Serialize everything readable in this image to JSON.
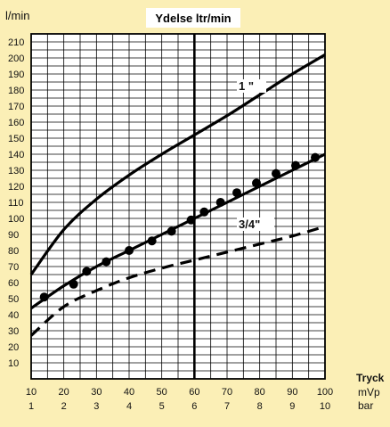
{
  "chart_data": {
    "type": "line",
    "title": "Ydelse ltr/min",
    "ylabel": "l/min",
    "xlabel": [
      "Tryck",
      "mVp",
      "bar"
    ],
    "x": [
      10,
      20,
      30,
      40,
      50,
      60,
      70,
      80,
      90,
      100
    ],
    "x_ticks_mvp": [
      "10",
      "20",
      "30",
      "40",
      "50",
      "60",
      "70",
      "80",
      "90",
      "100"
    ],
    "x_ticks_bar": [
      "1",
      "2",
      "3",
      "4",
      "5",
      "6",
      "7",
      "8",
      "9",
      "10"
    ],
    "y_ticks": [
      "10",
      "20",
      "30",
      "40",
      "50",
      "60",
      "70",
      "80",
      "90",
      "100",
      "110",
      "120",
      "130",
      "140",
      "150",
      "160",
      "170",
      "180",
      "190",
      "200",
      "210"
    ],
    "xlim": [
      10,
      100
    ],
    "ylim": [
      0,
      215
    ],
    "grid": true,
    "reference_line_x": 60,
    "series": [
      {
        "name": "1 \"",
        "style": "solid",
        "x": [
          10,
          20,
          30,
          40,
          50,
          60,
          70,
          80,
          90,
          100
        ],
        "y": [
          65,
          93,
          112,
          127,
          140,
          152,
          164,
          177,
          190,
          202
        ]
      },
      {
        "name": "",
        "style": "solid-dots",
        "x": [
          10,
          20,
          30,
          40,
          50,
          60,
          70,
          80,
          90,
          100
        ],
        "y": [
          44,
          58,
          70,
          80,
          90,
          100,
          110,
          120,
          130,
          140
        ]
      },
      {
        "name": "3/4\"",
        "style": "dashed",
        "x": [
          10,
          20,
          30,
          40,
          50,
          60,
          70,
          80,
          90,
          100
        ],
        "y": [
          27,
          45,
          55,
          63,
          69,
          74,
          79,
          84,
          89,
          95
        ]
      }
    ],
    "markers": {
      "series": 1,
      "x": [
        14,
        23,
        27,
        33,
        40,
        47,
        53,
        59,
        63,
        68,
        73,
        79,
        85,
        91,
        97
      ],
      "y": [
        51,
        59,
        67,
        73,
        80,
        86,
        92,
        99,
        104,
        110,
        116,
        122,
        128,
        133,
        138
      ]
    },
    "annotations": [
      {
        "text": "1 \"",
        "series": 0
      },
      {
        "text": "3/4\"",
        "series": 2
      }
    ]
  }
}
